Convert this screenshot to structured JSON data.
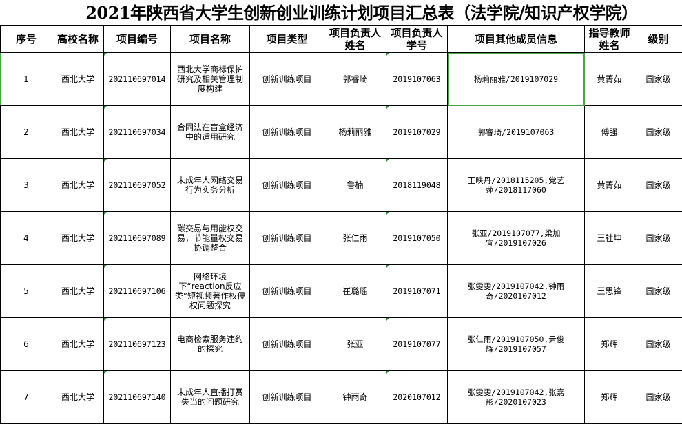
{
  "title": "2021年陕西省大学生创新创业训练计划项目汇总表（法学院/知识产权学院）",
  "headers": [
    "序号",
    "高校名称",
    "项目编号",
    "项目名称",
    "项目类型",
    "项目负责人姓名",
    "项目负责人学号",
    "项目其他成员信息",
    "指导教师姓名",
    "级别"
  ],
  "rows": [
    [
      "1",
      "西北大学",
      "202110697014",
      "西北大学商标保护研究及相关管理制度构建",
      "创新训练项目",
      "郭睿琦",
      "2019107063",
      "杨莉丽雅/2019107029",
      "黄菁茹",
      "国家级"
    ],
    [
      "2",
      "西北大学",
      "202110697034",
      "合同法在盲盒经济中的适用研究",
      "创新训练项目",
      "杨莉丽雅",
      "2019107029",
      "郭睿琦/2019107063",
      "傅强",
      "国家级"
    ],
    [
      "3",
      "西北大学",
      "202110697052",
      "未成年人网络交易行为实务分析",
      "创新训练项目",
      "鲁楠",
      "2018119048",
      "王昳丹/2018115205,党艺萍/2018117060",
      "黄菁茹",
      "国家级"
    ],
    [
      "4",
      "西北大学",
      "202110697089",
      "碳交易与用能权交易，节能量权交易协调整合",
      "创新训练项目",
      "张仁雨",
      "2019107050",
      "张亚/2019107077,梁加宜/2019107026",
      "王社坤",
      "国家级"
    ],
    [
      "5",
      "西北大学",
      "202110697106",
      "网络环境下“reaction反应类”短视频著作权侵权问题探究",
      "创新训练项目",
      "崔璐瑶",
      "2019107071",
      "张雯雯/2019107042,钟雨奇/2020107012",
      "王思锋",
      "国家级"
    ],
    [
      "6",
      "西北大学",
      "202110697123",
      "电商检索服务违约的探究",
      "创新训练项目",
      "张亚",
      "2019107077",
      "张仁雨/2019107050,尹俊辉/2019107057",
      "郑辉",
      "国家级"
    ],
    [
      "7",
      "西北大学",
      "202110697140",
      "未成年人直播打赏失当的问题研究",
      "创新训练项目",
      "钟雨奇",
      "2020107012",
      "张雯雯/2019107042,张嘉彤/2020107023",
      "郑辉",
      "国家级"
    ]
  ],
  "colors": {
    "selection": "#4aa346",
    "grid": "#000000"
  }
}
